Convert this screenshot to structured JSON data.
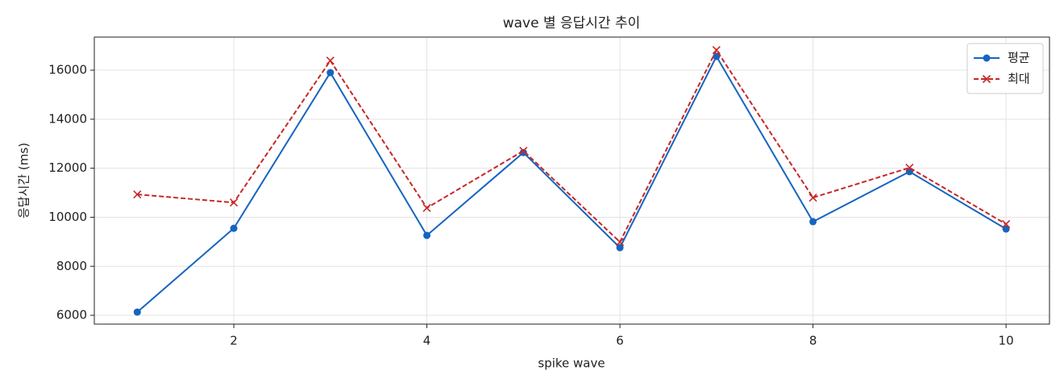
{
  "chart_data": {
    "type": "line",
    "title": "wave 별 응답시간 추이",
    "x_label": "spike wave",
    "y_label": "응답시간 (ms)",
    "x": [
      1,
      2,
      3,
      4,
      5,
      6,
      7,
      8,
      9,
      10
    ],
    "series": [
      {
        "name": "평균",
        "color": "#1565c0",
        "marker": "circle",
        "linestyle": "solid",
        "values": [
          6130,
          9550,
          15900,
          9260,
          12640,
          8760,
          16560,
          9820,
          11860,
          9520
        ]
      },
      {
        "name": "최대",
        "color": "#c62828",
        "marker": "x",
        "linestyle": "dashed",
        "values": [
          10930,
          10600,
          16390,
          10380,
          12710,
          8990,
          16820,
          10800,
          12020,
          9720
        ]
      }
    ],
    "xlim": [
      0.555,
      10.45
    ],
    "xticks": [
      2,
      4,
      6,
      8,
      10
    ],
    "ylim": [
      5640,
      17350
    ],
    "yticks": [
      6000,
      8000,
      10000,
      12000,
      14000,
      16000
    ],
    "grid": true,
    "legend": "upper right"
  }
}
